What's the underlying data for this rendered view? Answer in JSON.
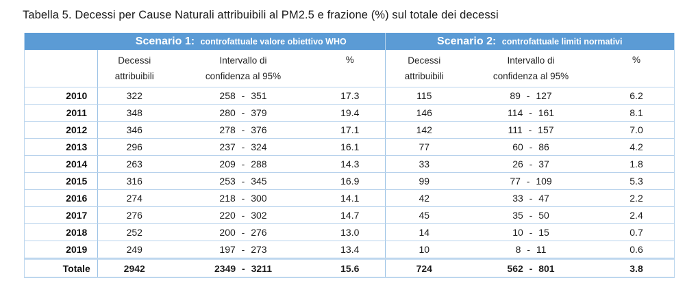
{
  "title": "Tabella 5. Decessi per Cause Naturali attribuibili al PM2.5 e frazione (%) sul totale dei decessi",
  "colors": {
    "header_background": "#5B9BD5",
    "header_text": "#FFFFFF",
    "row_border": "#B7D2EC",
    "section_border": "#9CC2E5",
    "outer_border": "#BDD7EE",
    "body_text": "#1C1C1C"
  },
  "table": {
    "scenarios": [
      {
        "label": "Scenario 1:",
        "description": "controfattuale valore obiettivo WHO"
      },
      {
        "label": "Scenario 2:",
        "description": "controfattuale limiti normativi"
      }
    ],
    "subheaders": {
      "deaths_line1": "Decessi",
      "deaths_line2": "attribuibili",
      "ci_line1": "Intervallo di",
      "ci_line2": "confidenza al 95%",
      "pct": "%"
    },
    "ci_separator": "-",
    "rows": [
      {
        "year": "2010",
        "s1": {
          "deaths": "322",
          "ci_low": "258",
          "ci_high": "351",
          "pct": "17.3"
        },
        "s2": {
          "deaths": "115",
          "ci_low": "89",
          "ci_high": "127",
          "pct": "6.2"
        }
      },
      {
        "year": "2011",
        "s1": {
          "deaths": "348",
          "ci_low": "280",
          "ci_high": "379",
          "pct": "19.4"
        },
        "s2": {
          "deaths": "146",
          "ci_low": "114",
          "ci_high": "161",
          "pct": "8.1"
        }
      },
      {
        "year": "2012",
        "s1": {
          "deaths": "346",
          "ci_low": "278",
          "ci_high": "376",
          "pct": "17.1"
        },
        "s2": {
          "deaths": "142",
          "ci_low": "111",
          "ci_high": "157",
          "pct": "7.0"
        }
      },
      {
        "year": "2013",
        "s1": {
          "deaths": "296",
          "ci_low": "237",
          "ci_high": "324",
          "pct": "16.1"
        },
        "s2": {
          "deaths": "77",
          "ci_low": "60",
          "ci_high": "86",
          "pct": "4.2"
        }
      },
      {
        "year": "2014",
        "s1": {
          "deaths": "263",
          "ci_low": "209",
          "ci_high": "288",
          "pct": "14.3"
        },
        "s2": {
          "deaths": "33",
          "ci_low": "26",
          "ci_high": "37",
          "pct": "1.8"
        }
      },
      {
        "year": "2015",
        "s1": {
          "deaths": "316",
          "ci_low": "253",
          "ci_high": "345",
          "pct": "16.9"
        },
        "s2": {
          "deaths": "99",
          "ci_low": "77",
          "ci_high": "109",
          "pct": "5.3"
        }
      },
      {
        "year": "2016",
        "s1": {
          "deaths": "274",
          "ci_low": "218",
          "ci_high": "300",
          "pct": "14.1"
        },
        "s2": {
          "deaths": "42",
          "ci_low": "33",
          "ci_high": "47",
          "pct": "2.2"
        }
      },
      {
        "year": "2017",
        "s1": {
          "deaths": "276",
          "ci_low": "220",
          "ci_high": "302",
          "pct": "14.7"
        },
        "s2": {
          "deaths": "45",
          "ci_low": "35",
          "ci_high": "50",
          "pct": "2.4"
        }
      },
      {
        "year": "2018",
        "s1": {
          "deaths": "252",
          "ci_low": "200",
          "ci_high": "276",
          "pct": "13.0"
        },
        "s2": {
          "deaths": "14",
          "ci_low": "10",
          "ci_high": "15",
          "pct": "0.7"
        }
      },
      {
        "year": "2019",
        "s1": {
          "deaths": "249",
          "ci_low": "197",
          "ci_high": "273",
          "pct": "13.4"
        },
        "s2": {
          "deaths": "10",
          "ci_low": "8",
          "ci_high": "11",
          "pct": "0.6"
        }
      },
      {
        "year": "Totale",
        "total": true,
        "s1": {
          "deaths": "2942",
          "ci_low": "2349",
          "ci_high": "3211",
          "pct": "15.6"
        },
        "s2": {
          "deaths": "724",
          "ci_low": "562",
          "ci_high": "801",
          "pct": "3.8"
        }
      }
    ]
  }
}
